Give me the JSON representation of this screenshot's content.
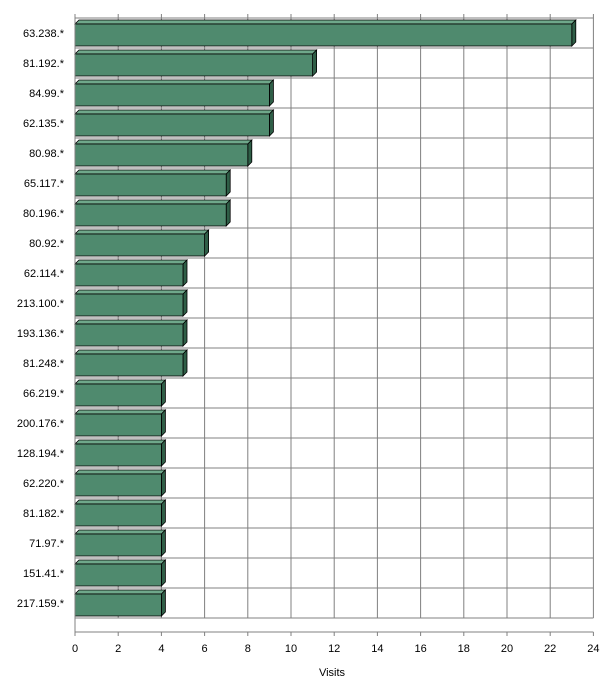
{
  "chart_data": {
    "type": "bar",
    "orientation": "horizontal",
    "title": "",
    "xlabel": "Visits",
    "ylabel": "",
    "xlim": [
      0,
      24
    ],
    "x_ticks": [
      0,
      2,
      4,
      6,
      8,
      10,
      12,
      14,
      16,
      18,
      20,
      22,
      24
    ],
    "grid": true,
    "legend": "none",
    "categories": [
      "63.238.*",
      "81.192.*",
      "84.99.*",
      "62.135.*",
      "80.98.*",
      "65.117.*",
      "80.196.*",
      "80.92.*",
      "62.114.*",
      "213.100.*",
      "193.136.*",
      "81.248.*",
      "66.219.*",
      "200.176.*",
      "128.194.*",
      "62.220.*",
      "81.182.*",
      "71.97.*",
      "151.41.*",
      "217.159.*"
    ],
    "values": [
      23,
      11,
      9,
      9,
      8,
      7,
      7,
      6,
      5,
      5,
      5,
      5,
      4,
      4,
      4,
      4,
      4,
      4,
      4,
      4
    ],
    "colors": {
      "bar_front": "#4f8a6e",
      "bar_top": "#6fa88b",
      "bar_side": "#2f5e47",
      "bar_outline": "#000000",
      "grid": "#808080",
      "axis": "#808080"
    }
  }
}
